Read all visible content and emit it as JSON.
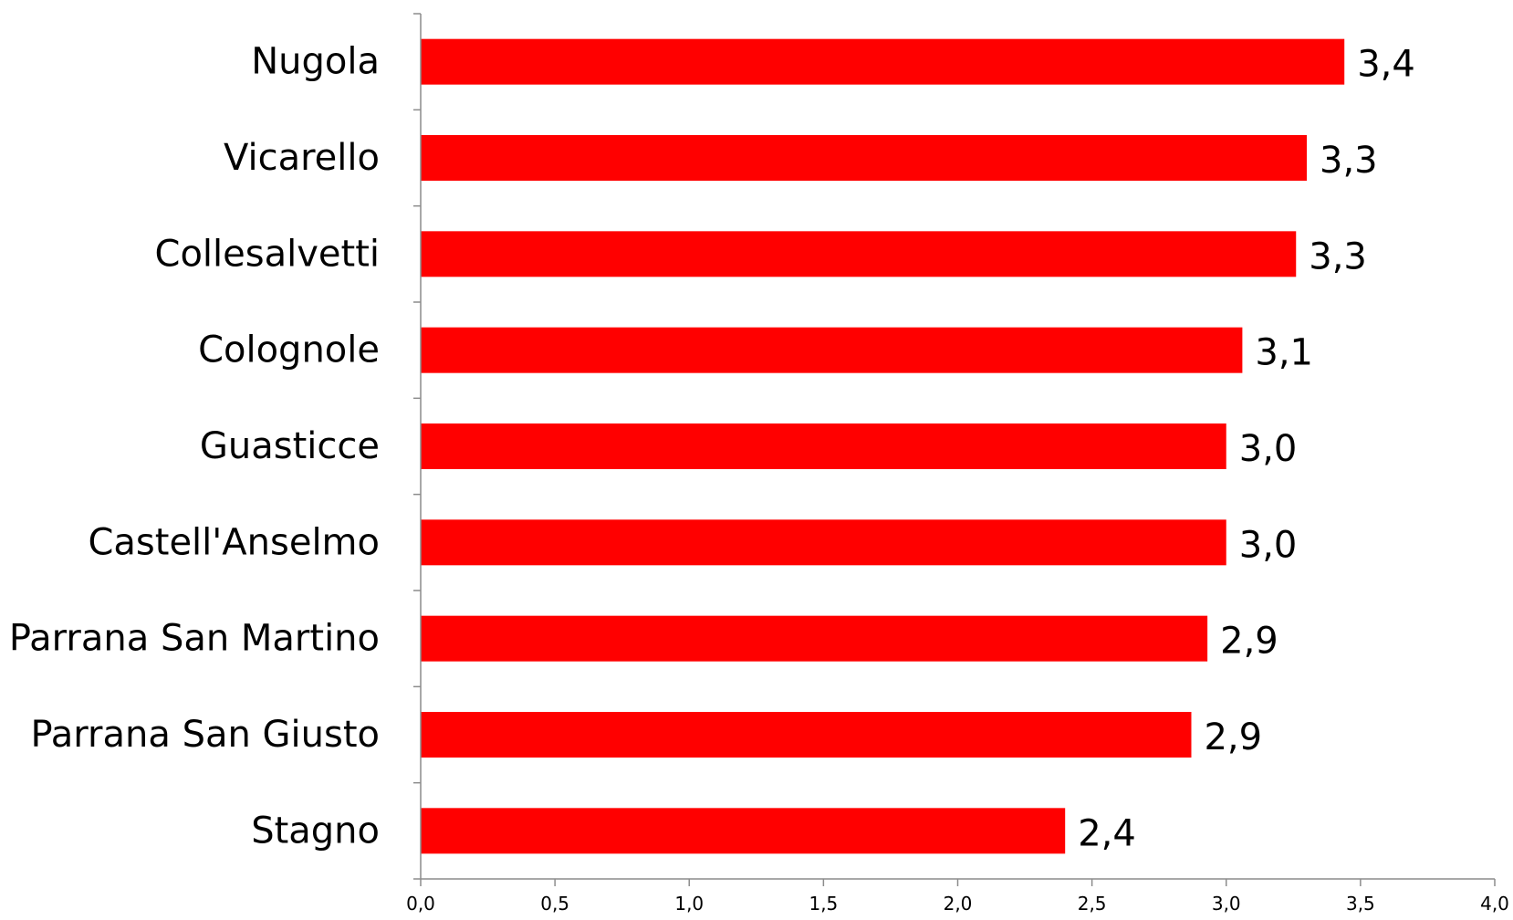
{
  "chart_data": {
    "type": "bar",
    "orientation": "horizontal",
    "categories": [
      "Nugola",
      "Vicarello",
      "Collesalvetti",
      "Colognole",
      "Guasticce",
      "Castell'Anselmo",
      "Parrana San Martino",
      "Parrana San Giusto",
      "Stagno"
    ],
    "values": [
      3.44,
      3.3,
      3.26,
      3.06,
      3.0,
      3.0,
      2.93,
      2.87,
      2.4
    ],
    "data_labels": [
      "3,4",
      "3,3",
      "3,3",
      "3,1",
      "3,0",
      "3,0",
      "2,9",
      "2,9",
      "2,4"
    ],
    "x_ticks": [
      "0,0",
      "0,5",
      "1,0",
      "1,5",
      "2,0",
      "2,5",
      "3,0",
      "3,5",
      "4,0"
    ],
    "xlim": [
      0,
      4
    ],
    "grid": false,
    "legend": "none",
    "bar_color": "#ff0000",
    "title": "",
    "xlabel": "",
    "ylabel": ""
  }
}
